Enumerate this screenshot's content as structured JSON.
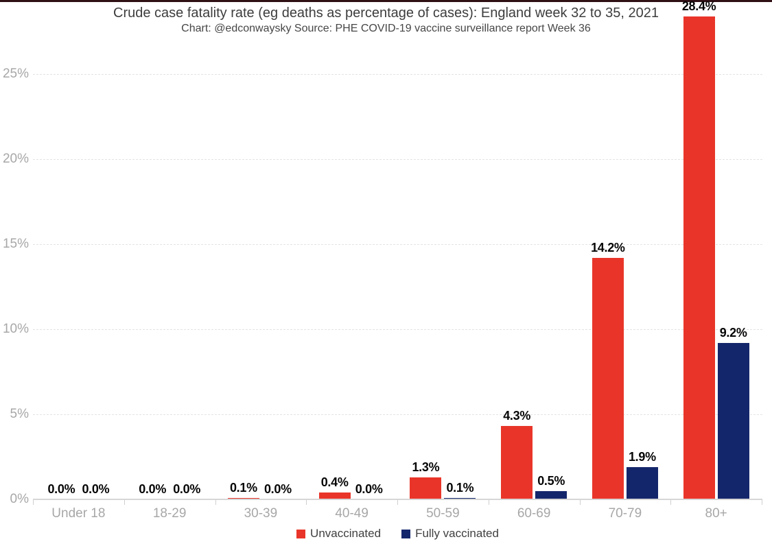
{
  "page": {
    "background_color": "#ffffff",
    "top_rule_color": "#2f1015"
  },
  "header": {
    "title": "Crude case fatality rate (eg deaths as percentage of cases): England week 32 to 35, 2021",
    "subtitle": "Chart: @edconwaysky Source: PHE COVID-19 vaccine surveillance report Week 36"
  },
  "chart_data": {
    "type": "bar",
    "title": "Crude case fatality rate (eg deaths as percentage of cases): England week 32 to 35, 2021",
    "subtitle": "Chart: @edconwaysky Source: PHE COVID-19 vaccine surveillance report Week 36",
    "categories": [
      "Under 18",
      "18-29",
      "30-39",
      "40-49",
      "50-59",
      "60-69",
      "70-79",
      "80+"
    ],
    "series": [
      {
        "name": "Unvaccinated",
        "color": "#e93529",
        "values": [
          0.0,
          0.0,
          0.1,
          0.4,
          1.3,
          4.3,
          14.2,
          28.4
        ],
        "labels": [
          "0.0%",
          "0.0%",
          "0.1%",
          "0.4%",
          "1.3%",
          "4.3%",
          "14.2%",
          "28.4%"
        ]
      },
      {
        "name": "Fully vaccinated",
        "color": "#14266b",
        "values": [
          0.0,
          0.0,
          0.0,
          0.0,
          0.1,
          0.5,
          1.9,
          9.2
        ],
        "labels": [
          "0.0%",
          "0.0%",
          "0.0%",
          "0.0%",
          "0.1%",
          "0.5%",
          "1.9%",
          "9.2%"
        ]
      }
    ],
    "ylabel": "",
    "xlabel": "",
    "y_axis": {
      "tick_labels": [
        "0%",
        "5%",
        "10%",
        "15%",
        "20%",
        "25%"
      ],
      "tick_values": [
        0,
        5,
        10,
        15,
        20,
        25
      ],
      "max_visible_gridline": 25,
      "ylim": [
        0,
        29.3
      ]
    },
    "grid": "horizontal-dashed",
    "legend": {
      "position": "bottom-center",
      "items": [
        {
          "label": "Unvaccinated",
          "color": "#e93529"
        },
        {
          "label": "Fully vaccinated",
          "color": "#14266b"
        }
      ]
    }
  }
}
